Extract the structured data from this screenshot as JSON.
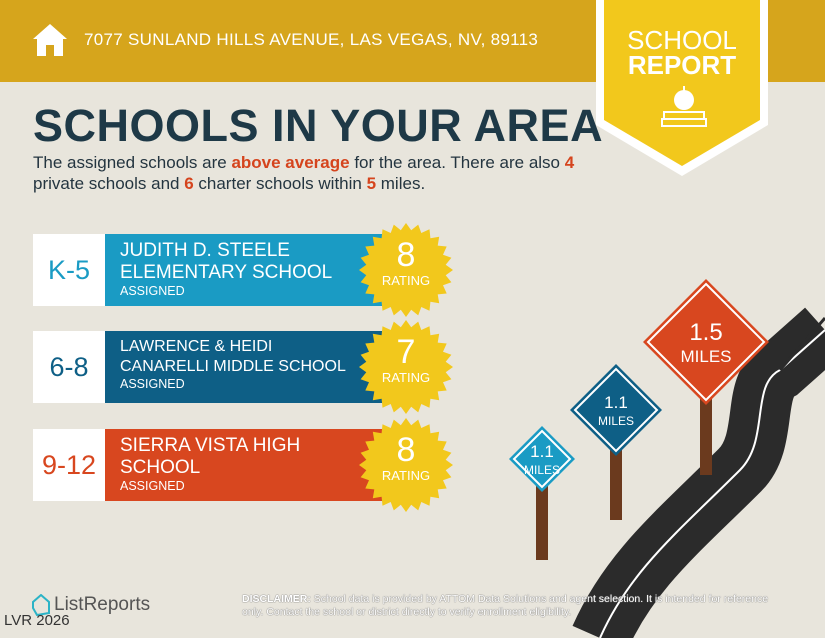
{
  "header": {
    "address": "7077 SUNLAND HILLS AVENUE, LAS VEGAS, NV, 89113",
    "badge_line1": "SCHOOL",
    "badge_line2": "REPORT",
    "icons": [
      "home-icon",
      "apple-books-icon"
    ]
  },
  "title": "SCHOOLS IN YOUR AREA",
  "description": {
    "p1": "The assigned schools are ",
    "h1": "above average",
    "p2": " for the area. There are also ",
    "h2": "4",
    "p3": " private schools and ",
    "h3": "6",
    "p4": " charter schools within ",
    "h4": "5",
    "p5": " miles."
  },
  "schools": [
    {
      "grade": "K-5",
      "name": "JUDITH D. STEELE ELEMENTARY SCHOOL",
      "status": "ASSIGNED",
      "rating": "8",
      "rating_label": "RATING",
      "color": "#1a9bc4"
    },
    {
      "grade": "6-8",
      "name": "LAWRENCE & HEIDI CANARELLI MIDDLE SCHOOL",
      "status": "ASSIGNED",
      "rating": "7",
      "rating_label": "RATING",
      "color": "#0e5f86"
    },
    {
      "grade": "9-12",
      "name": "SIERRA VISTA HIGH SCHOOL",
      "status": "ASSIGNED",
      "rating": "8",
      "rating_label": "RATING",
      "color": "#d8471f"
    }
  ],
  "signs": [
    {
      "value": "1.1",
      "unit": "MILES",
      "color": "#1a9bc4"
    },
    {
      "value": "1.1",
      "unit": "MILES",
      "color": "#0e5f86"
    },
    {
      "value": "1.5",
      "unit": "MILES",
      "color": "#d8471f"
    }
  ],
  "footer": {
    "logo": "ListReports",
    "watermark": "LVR 2026",
    "disclaimer_label": "DISCLAIMER:",
    "disclaimer": " School data is provided by ATTOM Data Solutions and agent selection. It is intended for reference only. Contact the school or district directly to verify enrollment eligibility."
  },
  "colors": {
    "gold": "#d6a51c",
    "badge": "#f2c81c",
    "background": "#e8e5dc"
  }
}
